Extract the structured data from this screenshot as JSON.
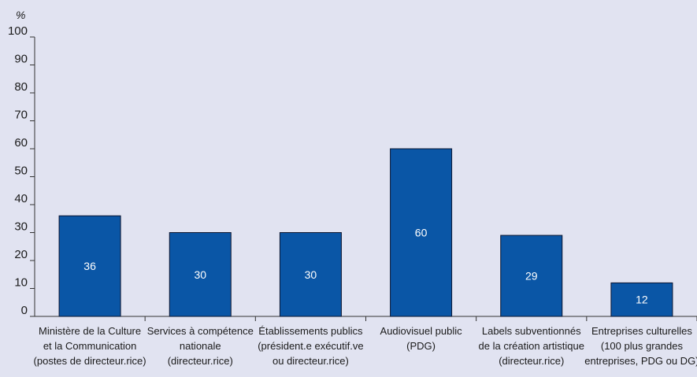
{
  "chart_data": {
    "type": "bar",
    "unit_label": "%",
    "ylim": [
      0,
      100
    ],
    "yticks": [
      "0",
      "10",
      "20",
      "30",
      "40",
      "50",
      "60",
      "70",
      "80",
      "90",
      "100"
    ],
    "categories": [
      [
        "Ministère de la Culture",
        "et la Communication",
        "(postes de directeur.rice)"
      ],
      [
        "Services à compétence",
        "nationale",
        "(directeur.rice)"
      ],
      [
        "Établissements publics",
        "(président.e exécutif.ve",
        "ou directeur.rice)"
      ],
      [
        "Audiovisuel public",
        "(PDG)"
      ],
      [
        "Labels subventionnés",
        "de la création artistique",
        "(directeur.rice)"
      ],
      [
        "Entreprises culturelles",
        "(100 plus grandes",
        "entreprises, PDG ou DG)"
      ]
    ],
    "values": [
      36,
      30,
      30,
      60,
      29,
      12
    ],
    "value_labels": [
      "36",
      "30",
      "30",
      "60",
      "29",
      "12"
    ],
    "grid": false,
    "colors": {
      "bar": "#0a56a6",
      "bar_edge": "#0b1530",
      "background": "#e1e3f1",
      "axis": "#333333"
    }
  }
}
